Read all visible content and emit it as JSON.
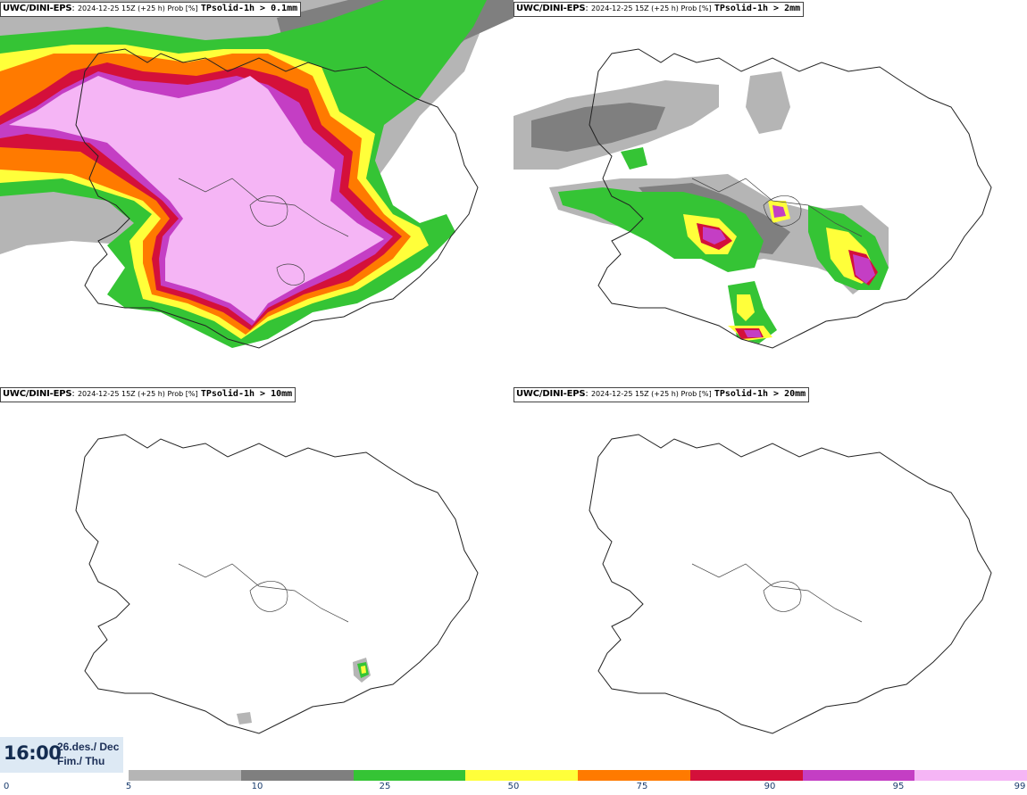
{
  "panels": [
    {
      "model": "UWC/DINI-EPS",
      "run": "2024-12-25 15Z (+25 h) Prob [%]",
      "param": "TPsolid-1h > 0.1mm"
    },
    {
      "model": "UWC/DINI-EPS",
      "run": "2024-12-25 15Z (+25 h) Prob [%]",
      "param": "TPsolid-1h > 2mm"
    },
    {
      "model": "UWC/DINI-EPS",
      "run": "2024-12-25 15Z (+25 h) Prob [%]",
      "param": "TPsolid-1h > 10mm"
    },
    {
      "model": "UWC/DINI-EPS",
      "run": "2024-12-25 15Z (+25 h) Prob [%]",
      "param": "TPsolid-1h > 20mm"
    }
  ],
  "valid_time": {
    "clock": "16:00",
    "date_line1": "26.des./ Dec",
    "date_line2": "Fim./ Thu"
  },
  "legend": {
    "labels": [
      "0",
      "5",
      "10",
      "25",
      "50",
      "75",
      "90",
      "95",
      "99"
    ],
    "colors": [
      "#b5b5b5",
      "#7f7f7f",
      "#35c435",
      "#ffff3a",
      "#ff7a00",
      "#d4103a",
      "#c43ec4",
      "#f5b5f5"
    ]
  },
  "colors": {
    "p5": "#b5b5b5",
    "p10": "#7f7f7f",
    "p25": "#35c435",
    "p50": "#ffff3a",
    "p75": "#ff7a00",
    "p90": "#d4103a",
    "p95": "#c43ec4",
    "p99": "#f5b5f5",
    "coast": "#222222",
    "time_box_bg": "#dde9f4",
    "clock_text": "#142c50"
  }
}
